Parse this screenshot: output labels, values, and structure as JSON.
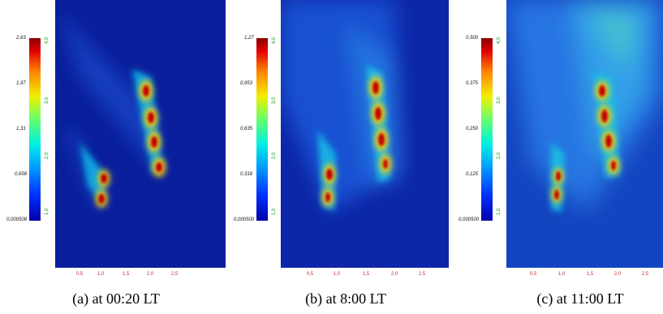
{
  "panels": [
    {
      "caption": "(a) at 00:20 LT",
      "colorbar_labels": [
        "2,63",
        "1,97",
        "1,31",
        "0,658",
        "0,000508"
      ],
      "colorbar_secondary": [
        "4,0",
        "3,0",
        "2,0",
        "1,0"
      ],
      "x_ticks": [
        "0,5",
        "1,0",
        "1,5",
        "2,0",
        "2,5"
      ]
    },
    {
      "caption": "(b) at 8:00 LT",
      "colorbar_labels": [
        "1,27",
        "0,953",
        "0,635",
        "0,318",
        "0,000500"
      ],
      "colorbar_secondary": [
        "4,0",
        "3,0",
        "2,0",
        "1,0"
      ],
      "x_ticks": [
        "0,5",
        "1,0",
        "1,5",
        "2,0",
        "2,5"
      ]
    },
    {
      "caption": "(c) at 11:00 LT",
      "colorbar_labels": [
        "0,500",
        "0,375",
        "0,250",
        "0,125",
        "0,000500"
      ],
      "colorbar_secondary": [
        "4,0",
        "3,0",
        "2,0",
        "1,0"
      ],
      "x_ticks": [
        "0,5",
        "1,0",
        "1,5",
        "2,0",
        "2,5"
      ]
    }
  ],
  "colors": {
    "background_field": "#0a1f9c",
    "hot_spot": "#c00000",
    "tick_text": "#c03030",
    "secondary_text": "#1a9a1a"
  }
}
